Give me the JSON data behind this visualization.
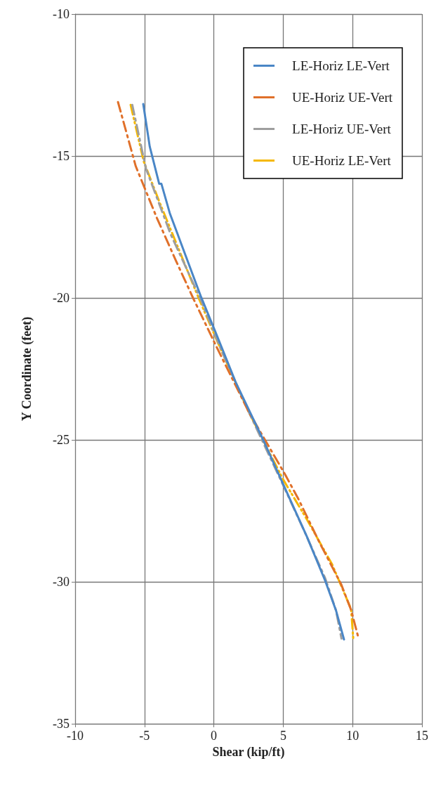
{
  "chart_data": {
    "type": "line",
    "xlabel": "Shear (kip/ft)",
    "ylabel": "Y Coordinate (feet)",
    "xlim": [
      -10,
      15
    ],
    "xticks": [
      -10,
      -5,
      0,
      5,
      10,
      15
    ],
    "ylim": [
      -35,
      -10
    ],
    "yticks": [
      -35,
      -30,
      -25,
      -20,
      -15,
      -10
    ],
    "grid": true,
    "legend": "top right",
    "marker": "none",
    "series": [
      {
        "name": "LE-Horiz LE-Vert",
        "color": "#4a86c6",
        "line_style": "solid",
        "x": [
          -5.09,
          -4.62,
          -3.94,
          -3.78,
          -3.18,
          -0.91,
          0.2,
          1.6,
          3.56,
          5.17,
          6.7,
          8.03,
          8.8,
          9.38
        ],
        "values": [
          -13.17,
          -14.67,
          -15.98,
          -15.98,
          -17.01,
          -19.98,
          -21.3,
          -23.0,
          -25.0,
          -26.75,
          -28.4,
          -29.97,
          -31.0,
          -32.03
        ]
      },
      {
        "name": "UE-Horiz UE-Vert",
        "color": "#e0702a",
        "line_style": "dashed",
        "x": [
          -6.91,
          -5.63,
          -4.11,
          -2.76,
          -1.5,
          0.27,
          2.5,
          5.17,
          6.09,
          7.6,
          9.18,
          9.9,
          10.45
        ],
        "values": [
          -13.1,
          -15.36,
          -17.18,
          -18.66,
          -20.0,
          -21.8,
          -24.0,
          -26.25,
          -27.08,
          -28.6,
          -30.09,
          -31.0,
          -32.03
        ]
      },
      {
        "name": "LE-Horiz UE-Vert",
        "color": "#9e9e9e",
        "line_style": "dashed",
        "x": [
          -5.88,
          -4.89,
          -3.12,
          -1.0,
          0.5,
          2.5,
          5.0,
          6.6,
          8.03,
          8.8,
          9.2
        ],
        "values": [
          -13.2,
          -15.45,
          -17.75,
          -20.0,
          -21.8,
          -24.0,
          -26.6,
          -28.3,
          -29.88,
          -31.0,
          -32.0
        ]
      },
      {
        "name": "UE-Horiz LE-Vert",
        "color": "#f5b800",
        "line_style": "dotted",
        "x": [
          -6.0,
          -5.05,
          -3.94,
          -1.1,
          0.4,
          2.5,
          5.0,
          6.68,
          8.52,
          9.89,
          10.05
        ],
        "values": [
          -13.2,
          -15.2,
          -16.6,
          -20.0,
          -21.7,
          -24.0,
          -26.4,
          -27.78,
          -29.38,
          -30.96,
          -32.0
        ]
      }
    ]
  }
}
